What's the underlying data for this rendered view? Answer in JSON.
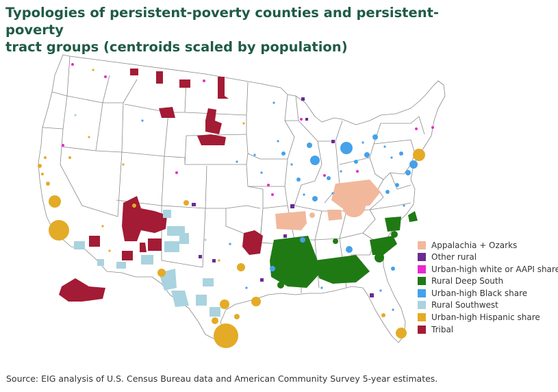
{
  "title_line1": "Typologies of persistent-poverty counties and persistent-poverty",
  "title_line2": "tract groups (centroids scaled by population)",
  "source": "Source: EIG analysis of U.S. Census Bureau data and American Community Survey 5-year estimates.",
  "legend": [
    {
      "key": "appalachia",
      "label": "Appalachia + Ozarks",
      "color": "#f2b89c"
    },
    {
      "key": "other_rural",
      "label": "Other rural",
      "color": "#6a2c91"
    },
    {
      "key": "urban_white",
      "label": "Urban-high white or AAPI share",
      "color": "#e62ad0"
    },
    {
      "key": "deep_south",
      "label": "Rural Deep South",
      "color": "#1f7a14"
    },
    {
      "key": "urban_black",
      "label": "Urban-high Black share",
      "color": "#45a1ea"
    },
    {
      "key": "southwest",
      "label": "Rural Southwest",
      "color": "#a9d3df"
    },
    {
      "key": "hispanic",
      "label": "Urban-high Hispanic share",
      "color": "#e3ab26"
    },
    {
      "key": "tribal",
      "label": "Tribal",
      "color": "#a31b34"
    }
  ]
}
